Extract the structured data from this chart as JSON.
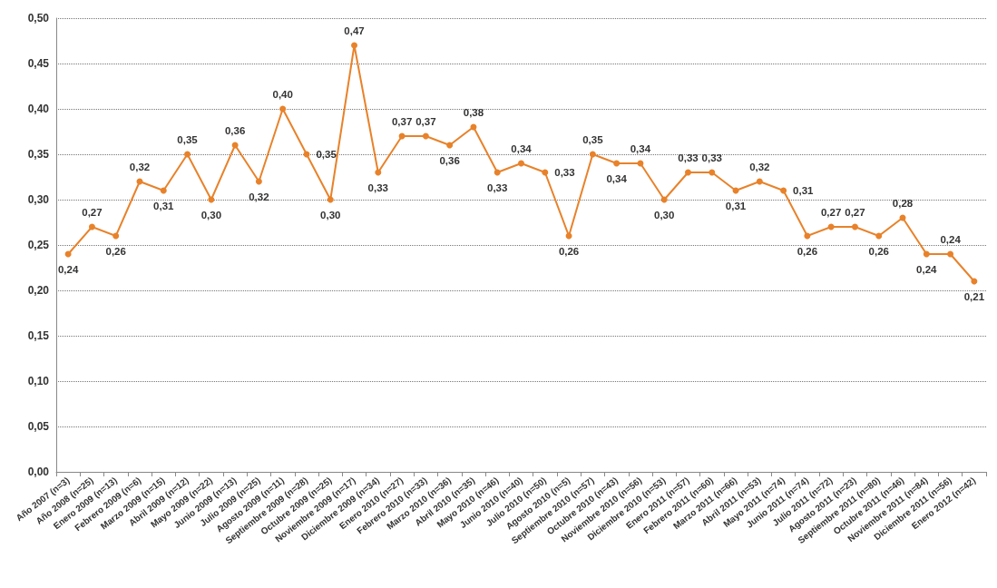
{
  "chart_data": {
    "type": "line",
    "categories": [
      "Año 2007 (n=3)",
      "Año 2008 (n=25)",
      "Enero 2009 (n=13)",
      "Febrero 2009 (n=6)",
      "Marzo 2009 (n=15)",
      "Abril 2009 (n=12)",
      "Mayo 2009 (n=22)",
      "Junio 2009 (n=13)",
      "Julio 2009 (n=25)",
      "Agosto 2009 (n=11)",
      "Septiembre 2009 (n=28)",
      "Octubre 2009 (n=25)",
      "Noviembre 2009 (n=17)",
      "Diciembre 2009 (n=34)",
      "Enero 2010 (n=27)",
      "Febrero 2010 (n=33)",
      "Marzo 2010 (n=36)",
      "Abril 2010 (n=35)",
      "Mayo 2010 (n=46)",
      "Junio 2010 (n=40)",
      "Julio 2010 (n=50)",
      "Agosto 2010 (n=5)",
      "Septiembre 2010 (n=57)",
      "Octubre 2010 (n=43)",
      "Noviembre 2010 (n=56)",
      "Diciembre 2010 (n=53)",
      "Enero 2011 (n=57)",
      "Febrero 2011 (n=60)",
      "Marzo 2011 (n=66)",
      "Abril 2011 (n=53)",
      "Mayo 2011 (n=74)",
      "Junio 2011 (n=74)",
      "Julio 2011 (n=72)",
      "Agosto 2011 (n=23)",
      "Septiembre 2011 (n=80)",
      "Octubre 2011 (n=46)",
      "Noviembre 2011 (n=84)",
      "Diciembre 2011 (n=56)",
      "Enero 2012 (n=42)"
    ],
    "series": [
      {
        "color": "#e8822a",
        "values": [
          0.24,
          0.27,
          0.26,
          0.32,
          0.31,
          0.35,
          0.3,
          0.36,
          0.32,
          0.4,
          0.35,
          0.3,
          0.47,
          0.33,
          0.37,
          0.37,
          0.36,
          0.38,
          0.33,
          0.34,
          0.33,
          0.26,
          0.35,
          0.34,
          0.34,
          0.3,
          0.33,
          0.33,
          0.31,
          0.32,
          0.31,
          0.26,
          0.27,
          0.27,
          0.26,
          0.28,
          0.24,
          0.24,
          0.21
        ],
        "value_labels": [
          "0,24",
          "0,27",
          "0,26",
          "0,32",
          "0,31",
          "0,35",
          "0,30",
          "0,36",
          "0,32",
          "0,40",
          "0,35",
          "0,30",
          "0,47",
          "0,33",
          "0,37",
          "0,37",
          "0,36",
          "0,38",
          "0,33",
          "0,34",
          "0,33",
          "0,26",
          "0,35",
          "0,34",
          "0,34",
          "0,30",
          "0,33",
          "0,33",
          "0,31",
          "0,32",
          "0,31",
          "0,26",
          "0,27",
          "0,27",
          "0,26",
          "0,28",
          "0,24",
          "0,24",
          "0,21"
        ]
      }
    ],
    "ylim": [
      0,
      0.5
    ],
    "yticks": [
      {
        "value": 0,
        "label": "0,00"
      },
      {
        "value": 0.05,
        "label": "0,05"
      },
      {
        "value": 0.1,
        "label": "0,10"
      },
      {
        "value": 0.15,
        "label": "0,15"
      },
      {
        "value": 0.2,
        "label": "0,20"
      },
      {
        "value": 0.25,
        "label": "0,25"
      },
      {
        "value": 0.3,
        "label": "0,30"
      },
      {
        "value": 0.35,
        "label": "0,35"
      },
      {
        "value": 0.4,
        "label": "0,40"
      },
      {
        "value": 0.45,
        "label": "0,45"
      },
      {
        "value": 0.5,
        "label": "0,50"
      }
    ],
    "grid": "y",
    "marker": "circle",
    "line_style": "solid"
  }
}
